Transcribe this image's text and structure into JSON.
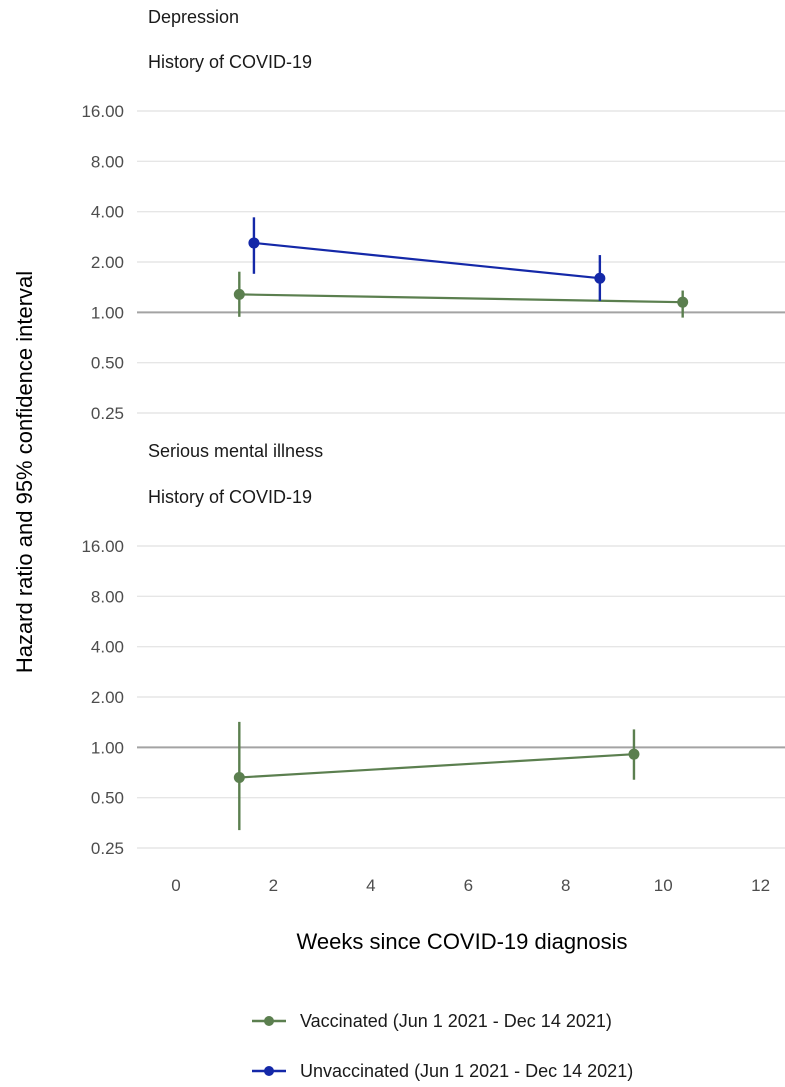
{
  "chart_data": {
    "type": "line",
    "xlabel": "Weeks since COVID-19 diagnosis",
    "ylabel": "Hazard ratio and 95% confidence interval",
    "y_scale": "log2",
    "reference_line": 1.0,
    "x_ticks": [
      0,
      2,
      4,
      6,
      8,
      10,
      12
    ],
    "xlim": [
      -0.8,
      12.5
    ],
    "y_ticks": [
      0.25,
      0.5,
      1.0,
      2.0,
      4.0,
      8.0,
      16.0
    ],
    "y_tick_labels": [
      "0.25",
      "0.50",
      "1.00",
      "2.00",
      "4.00",
      "8.00",
      "16.00"
    ],
    "grid": true,
    "legend_position": "bottom",
    "legend": [
      {
        "label": "Vaccinated (Jun 1 2021 - Dec 14 2021)",
        "color": "#5b7f4f"
      },
      {
        "label": "Unvaccinated (Jun 1 2021 - Dec 14 2021)",
        "color": "#1428a8"
      }
    ],
    "panels": [
      {
        "title": "Depression",
        "subtitle": "History of COVID-19",
        "series": [
          {
            "name": "Vaccinated (Jun 1 2021 - Dec 14 2021)",
            "color": "#5b7f4f",
            "x": [
              1.3,
              10.4
            ],
            "y": [
              1.28,
              1.15
            ],
            "lower": [
              0.94,
              0.93
            ],
            "upper": [
              1.75,
              1.35
            ]
          },
          {
            "name": "Unvaccinated (Jun 1 2021 - Dec 14 2021)",
            "color": "#1428a8",
            "x": [
              1.6,
              8.7
            ],
            "y": [
              2.6,
              1.6
            ],
            "lower": [
              1.7,
              1.17
            ],
            "upper": [
              3.7,
              2.2
            ]
          }
        ]
      },
      {
        "title": "Serious mental illness",
        "subtitle": "History of COVID-19",
        "series": [
          {
            "name": "Vaccinated (Jun 1 2021 - Dec 14 2021)",
            "color": "#5b7f4f",
            "x": [
              1.3,
              9.4
            ],
            "y": [
              0.66,
              0.91
            ],
            "lower": [
              0.32,
              0.64
            ],
            "upper": [
              1.42,
              1.28
            ]
          }
        ]
      }
    ]
  }
}
